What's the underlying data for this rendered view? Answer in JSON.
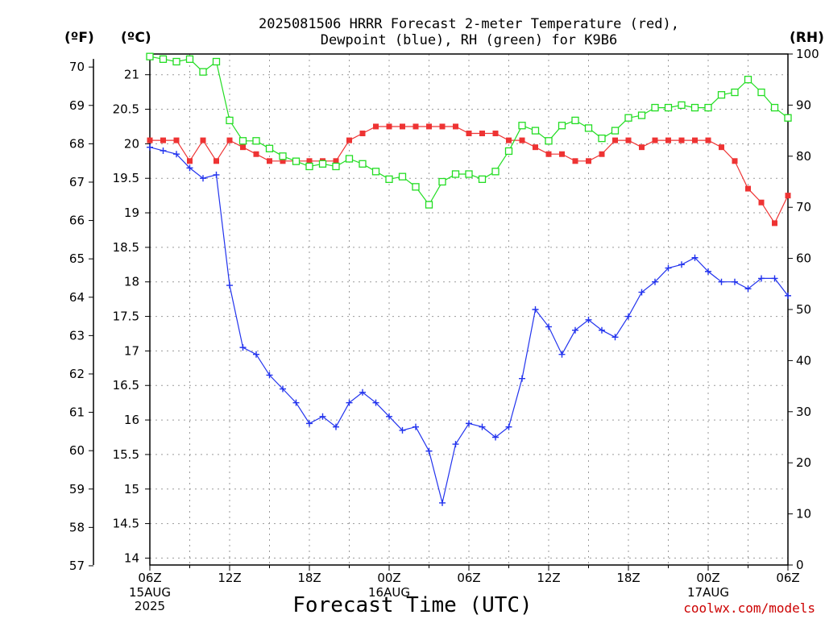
{
  "title_line1": "2025081506 HRRR Forecast 2-meter Temperature (red),",
  "title_line2": "Dewpoint (blue), RH (green) for K9B6",
  "units": {
    "left_f": "(ºF)",
    "left_c": "(ºC)",
    "right": "(RH)"
  },
  "credit": "coolwx.com/models",
  "colors": {
    "temperature": "#ee3333",
    "dewpoint": "#2233ee",
    "rh": "#22dd22"
  },
  "chart_data": {
    "type": "line",
    "title": "2025081506 HRRR Forecast 2-meter Temperature (red), Dewpoint (blue), RH (green) for K9B6",
    "xlabel": "Forecast Time (UTC)",
    "x_hours": [
      0,
      1,
      2,
      3,
      4,
      5,
      6,
      7,
      8,
      9,
      10,
      11,
      12,
      13,
      14,
      15,
      16,
      17,
      18,
      19,
      20,
      21,
      22,
      23,
      24,
      25,
      26,
      27,
      28,
      29,
      30,
      31,
      32,
      33,
      34,
      35,
      36,
      37,
      38,
      39,
      40,
      41,
      42,
      43,
      44,
      45,
      46,
      47,
      48
    ],
    "x_ticks": [
      {
        "hour": 0,
        "label": "06Z",
        "sub1": "15AUG",
        "sub2": "2025"
      },
      {
        "hour": 6,
        "label": "12Z"
      },
      {
        "hour": 12,
        "label": "18Z"
      },
      {
        "hour": 18,
        "label": "00Z",
        "sub1": "16AUG"
      },
      {
        "hour": 24,
        "label": "06Z"
      },
      {
        "hour": 30,
        "label": "12Z"
      },
      {
        "hour": 36,
        "label": "18Z"
      },
      {
        "hour": 42,
        "label": "00Z",
        "sub1": "17AUG"
      },
      {
        "hour": 48,
        "label": "06Z"
      }
    ],
    "y_left_c": {
      "min": 13.9,
      "max": 21.3,
      "ticks": [
        "14",
        "14.5",
        "15",
        "15.5",
        "16",
        "16.5",
        "17",
        "17.5",
        "18",
        "18.5",
        "19",
        "19.5",
        "20",
        "20.5",
        "21"
      ]
    },
    "y_left_f": {
      "ticks": [
        "57",
        "58",
        "59",
        "60",
        "61",
        "62",
        "63",
        "64",
        "65",
        "66",
        "67",
        "68",
        "69",
        "70"
      ]
    },
    "y_right": {
      "min": 0,
      "max": 100,
      "ticks": [
        "0",
        "10",
        "20",
        "30",
        "40",
        "50",
        "60",
        "70",
        "80",
        "90",
        "100"
      ]
    },
    "series": [
      {
        "name": "Temperature",
        "axis": "C",
        "marker": "filled-square",
        "values": [
          20.05,
          20.05,
          20.05,
          19.75,
          20.05,
          19.75,
          20.05,
          19.95,
          19.85,
          19.75,
          19.75,
          19.75,
          19.75,
          19.75,
          19.75,
          20.05,
          20.15,
          20.25,
          20.25,
          20.25,
          20.25,
          20.25,
          20.25,
          20.25,
          20.15,
          20.15,
          20.15,
          20.05,
          20.05,
          19.95,
          19.85,
          19.85,
          19.75,
          19.75,
          19.85,
          20.05,
          20.05,
          19.95,
          20.05,
          20.05,
          20.05,
          20.05,
          20.05,
          19.95,
          19.75,
          19.35,
          19.15,
          18.85,
          19.25
        ]
      },
      {
        "name": "Dewpoint",
        "axis": "C",
        "marker": "plus",
        "values": [
          19.95,
          19.9,
          19.85,
          19.65,
          19.5,
          19.55,
          17.95,
          17.05,
          16.95,
          16.65,
          16.45,
          16.25,
          15.95,
          16.05,
          15.9,
          16.25,
          16.4,
          16.25,
          16.05,
          15.85,
          15.9,
          15.55,
          14.8,
          15.65,
          15.95,
          15.9,
          15.75,
          15.9,
          16.6,
          17.6,
          17.35,
          16.95,
          17.3,
          17.45,
          17.3,
          17.2,
          17.5,
          17.85,
          18.0,
          18.2,
          18.25,
          18.35,
          18.15,
          18.0,
          18.0,
          17.9,
          18.05,
          18.05,
          17.8
        ]
      },
      {
        "name": "RH",
        "axis": "RH",
        "marker": "open-square",
        "values": [
          99.5,
          99,
          98.5,
          99,
          96.5,
          98.5,
          87,
          83,
          83,
          81.5,
          80,
          79,
          78,
          78.5,
          78,
          79.5,
          78.5,
          77,
          75.5,
          76,
          74,
          70.5,
          75,
          76.5,
          76.5,
          75.5,
          77,
          81,
          86,
          85,
          83,
          86,
          87,
          85.5,
          83.5,
          85,
          87.5,
          88,
          89.5,
          89.5,
          90,
          89.5,
          89.5,
          92,
          92.5,
          95,
          92.5,
          89.5,
          87.5
        ]
      }
    ]
  }
}
